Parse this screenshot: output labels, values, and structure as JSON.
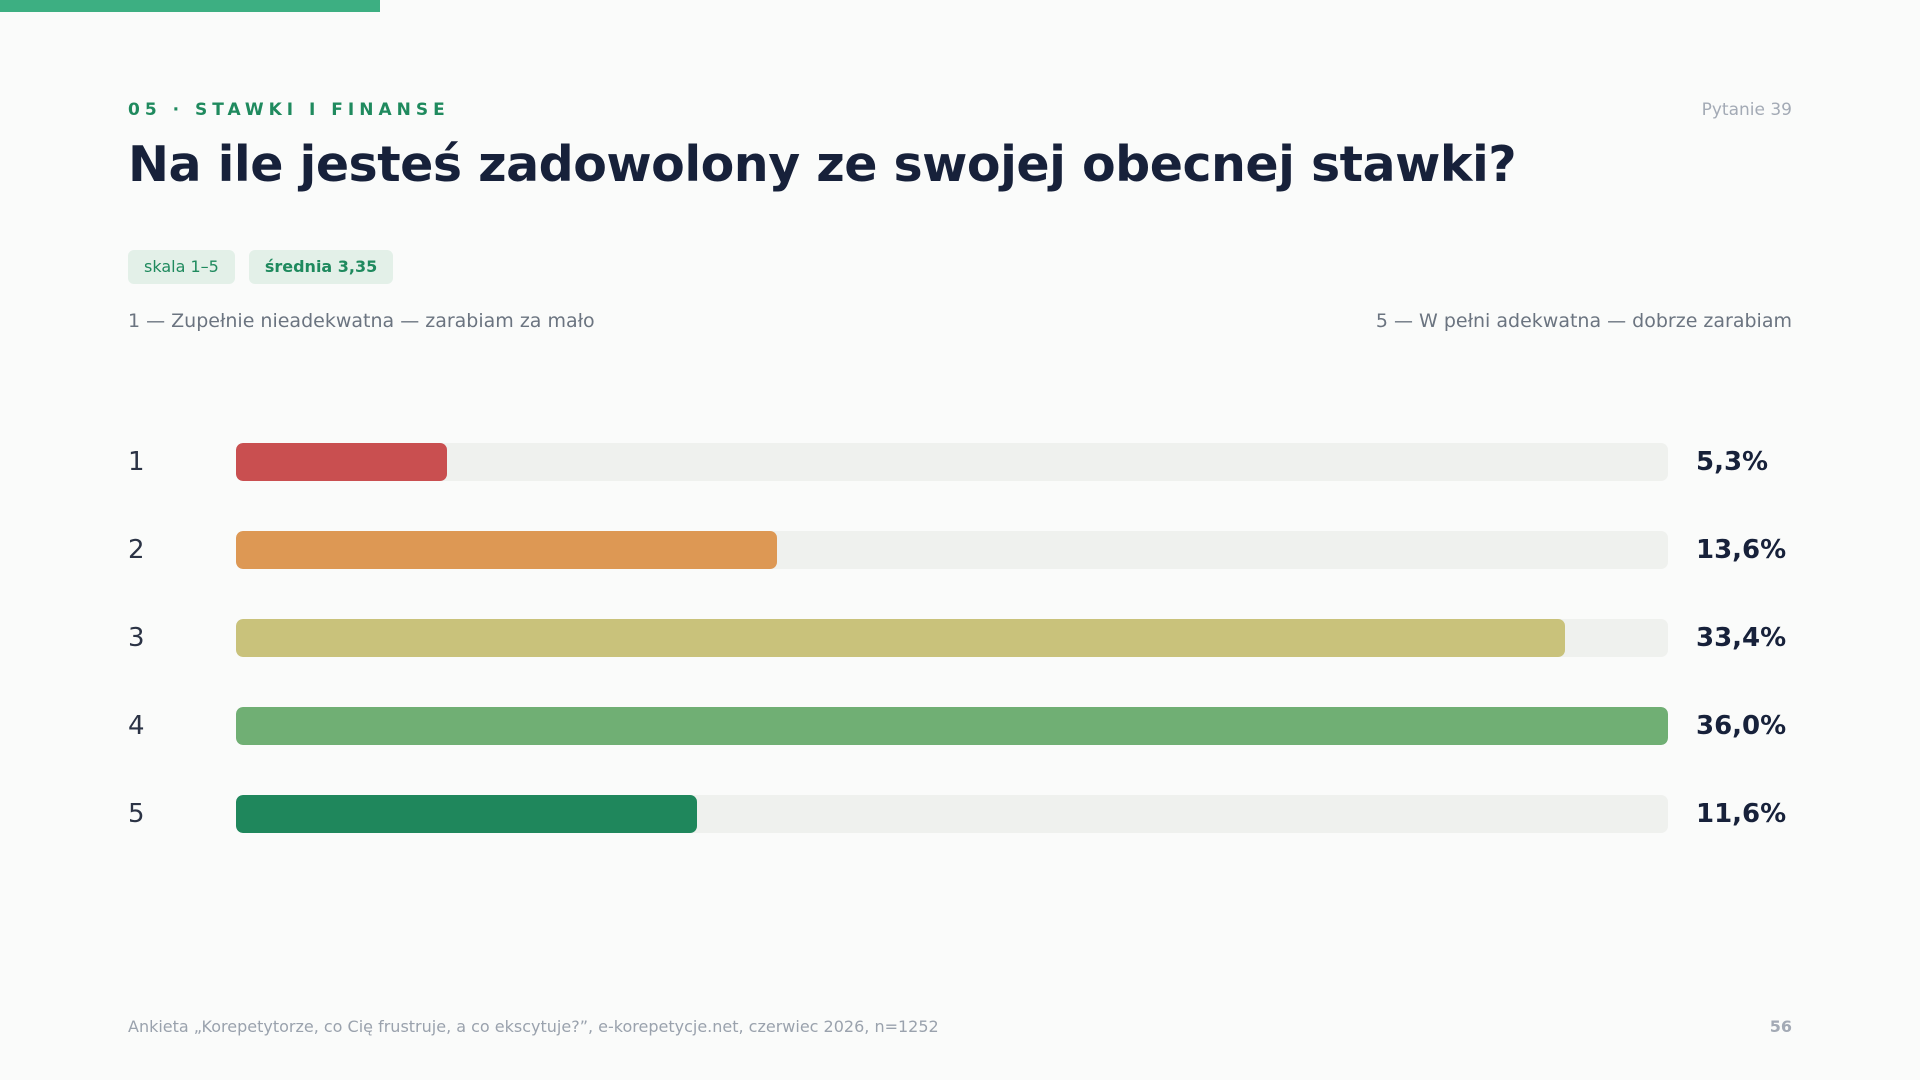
{
  "header": {
    "section": "05 · STAWKI I FINANSE",
    "question_number": "Pytanie 39",
    "title": "Na ile jesteś zadowolony ze swojej obecnej stawki?"
  },
  "badges": {
    "scale": "skala 1–5",
    "average": "średnia 3,35"
  },
  "scale_labels": {
    "low": "1 — Zupełnie nieadekwatna — zarabiam za mało",
    "high": "5 — W pełni adekwatna — dobrze zarabiam"
  },
  "colors": {
    "accent": "#3daf82",
    "bar_1": "#c94f50",
    "bar_2": "#dd9854",
    "bar_3": "#c9c27b",
    "bar_4": "#70af74",
    "bar_5": "#1f875c",
    "track": "#eff1ee"
  },
  "chart_data": {
    "type": "bar",
    "orientation": "horizontal",
    "categories": [
      "1",
      "2",
      "3",
      "4",
      "5"
    ],
    "values": [
      5.3,
      13.6,
      33.4,
      36.0,
      11.6
    ],
    "value_labels": [
      "5,3%",
      "13,6%",
      "33,4%",
      "36,0%",
      "11,6%"
    ],
    "scale_max": 36.0,
    "unit": "%"
  },
  "footer": {
    "source": "Ankieta „Korepetytorze, co Cię frustruje, a co ekscytuje?”, e-korepetycje.net, czerwiec 2026, n=1252",
    "page_number": "56"
  }
}
